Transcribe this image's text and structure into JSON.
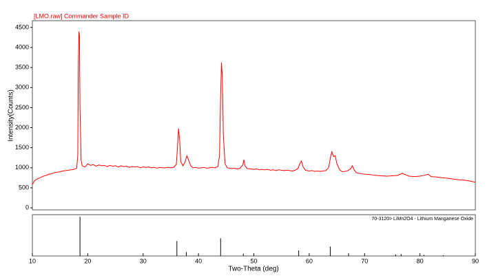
{
  "chart_data": [
    {
      "type": "line",
      "title": "[LMO.raw] Commander Sample ID",
      "y_label": "Intensity(Counts)",
      "color": "#ff0000",
      "x": [
        10.0,
        10.3,
        10.6,
        11.0,
        11.5,
        12.0,
        12.5,
        13.0,
        13.5,
        14.0,
        14.5,
        15.0,
        15.5,
        16.0,
        16.5,
        17.0,
        17.5,
        18.0,
        18.2,
        18.3,
        18.4,
        18.5,
        18.6,
        18.8,
        19.0,
        19.5,
        20.0,
        20.5,
        21.0,
        21.5,
        22.0,
        22.5,
        23.0,
        23.5,
        24.0,
        24.5,
        25.0,
        25.5,
        26.0,
        26.5,
        27.0,
        27.5,
        28.0,
        28.5,
        29.0,
        29.5,
        30.0,
        30.5,
        31.0,
        31.5,
        32.0,
        32.5,
        33.0,
        33.5,
        34.0,
        34.5,
        35.0,
        35.5,
        36.0,
        36.2,
        36.4,
        36.6,
        36.8,
        37.2,
        37.6,
        37.9,
        38.2,
        38.6,
        39.0,
        39.5,
        40.0,
        40.5,
        41.0,
        41.5,
        42.0,
        42.5,
        43.0,
        43.5,
        43.8,
        44.0,
        44.15,
        44.3,
        44.5,
        44.8,
        45.2,
        45.6,
        46.0,
        46.5,
        47.0,
        47.5,
        48.0,
        48.2,
        48.4,
        48.8,
        49.5,
        50.0,
        50.5,
        51.0,
        51.5,
        52.0,
        52.5,
        53.0,
        53.5,
        54.0,
        54.5,
        55.0,
        55.5,
        56.0,
        56.5,
        57.0,
        57.5,
        58.0,
        58.3,
        58.6,
        58.9,
        59.3,
        60.0,
        60.5,
        61.0,
        61.5,
        62.0,
        62.5,
        63.0,
        63.5,
        63.9,
        64.1,
        64.4,
        64.7,
        65.0,
        65.5,
        66.0,
        66.5,
        67.0,
        67.5,
        67.8,
        68.1,
        68.5,
        69.0,
        69.5,
        70.0,
        71.0,
        71.5,
        72.0,
        73.0,
        74.0,
        75.0,
        76.0,
        76.8,
        77.5,
        78.0,
        79.0,
        80.0,
        81.0,
        81.5,
        82.0,
        83.0,
        84.0,
        85.0,
        86.0,
        87.0,
        88.0,
        89.0,
        90.0
      ],
      "values": [
        580,
        660,
        700,
        730,
        760,
        790,
        810,
        840,
        850,
        880,
        890,
        900,
        920,
        930,
        940,
        950,
        960,
        990,
        1300,
        3500,
        4400,
        4300,
        2500,
        1200,
        1050,
        1020,
        1100,
        1060,
        1080,
        1040,
        1070,
        1050,
        1060,
        1030,
        1060,
        1040,
        1050,
        1020,
        1050,
        1030,
        1040,
        1010,
        1030,
        1020,
        1030,
        1000,
        1020,
        1010,
        1020,
        1000,
        1010,
        990,
        1010,
        1000,
        1000,
        1010,
        1000,
        1010,
        1080,
        1500,
        1980,
        1700,
        1150,
        1050,
        1150,
        1300,
        1200,
        1050,
        1000,
        1010,
        990,
        1000,
        1010,
        990,
        1000,
        1010,
        1000,
        1030,
        1300,
        2800,
        3620,
        3300,
        1800,
        1100,
        1000,
        990,
        980,
        990,
        970,
        990,
        1070,
        1200,
        1050,
        980,
        970,
        960,
        970,
        950,
        960,
        950,
        960,
        940,
        950,
        930,
        950,
        940,
        930,
        940,
        930,
        920,
        940,
        990,
        1100,
        1170,
        1020,
        940,
        920,
        930,
        910,
        920,
        910,
        920,
        930,
        1000,
        1300,
        1400,
        1280,
        1300,
        1100,
        950,
        900,
        910,
        930,
        980,
        1050,
        950,
        880,
        860,
        850,
        840,
        830,
        820,
        810,
        800,
        790,
        800,
        810,
        860,
        820,
        790,
        780,
        790,
        820,
        840,
        780,
        770,
        750,
        740,
        720,
        700,
        690,
        670,
        640
      ],
      "xlim": [
        10,
        90
      ],
      "ylim": [
        -50,
        4670
      ],
      "yticks": [
        0,
        500,
        1000,
        1500,
        2000,
        2500,
        3000,
        3500,
        4000,
        4500
      ]
    },
    {
      "type": "stick",
      "title": "70-3120> LiMn2O4 - Lithium Manganese Oxide",
      "x_label": "Two-Theta (deg)",
      "color": "#000000",
      "x": [
        18.6,
        36.1,
        37.8,
        44.0,
        48.1,
        58.1,
        63.8,
        67.1,
        75.6,
        76.6,
        80.7,
        84.2
      ],
      "values": [
        100,
        38,
        10,
        45,
        6,
        14,
        24,
        7,
        4,
        5,
        3,
        2
      ],
      "xlim": [
        10,
        90
      ],
      "xticks": [
        10,
        20,
        30,
        40,
        50,
        60,
        70,
        80,
        90
      ],
      "ylim": [
        0,
        105
      ]
    }
  ]
}
